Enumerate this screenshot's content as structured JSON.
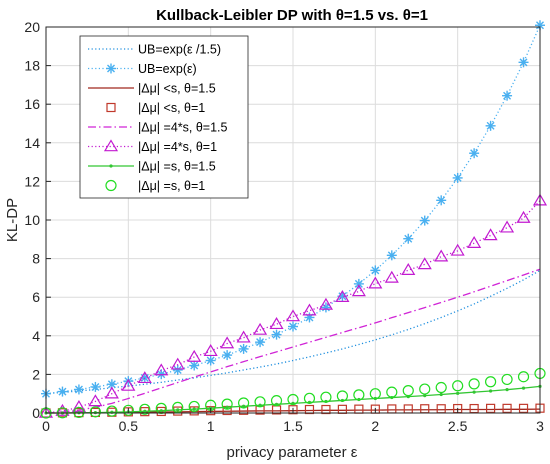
{
  "chart_data": {
    "type": "line",
    "title": "Kullback-Leibler DP with θ=1.5 vs. θ=1",
    "xlabel": "privacy parameter ε",
    "ylabel": "KL-DP",
    "xlim": [
      0,
      3
    ],
    "ylim": [
      0,
      20
    ],
    "xticks": [
      0,
      0.5,
      1,
      1.5,
      2,
      2.5,
      3
    ],
    "xtick_labels": [
      "0",
      "0.5",
      "1",
      "1.5",
      "2",
      "2.5",
      "3"
    ],
    "yticks": [
      0,
      2,
      4,
      6,
      8,
      10,
      12,
      14,
      16,
      18,
      20
    ],
    "ytick_labels": [
      "0",
      "2",
      "4",
      "6",
      "8",
      "10",
      "12",
      "14",
      "16",
      "18",
      "20"
    ],
    "grid": true,
    "legend_position": "top-left",
    "x": [
      0,
      0.1,
      0.2,
      0.3,
      0.4,
      0.5,
      0.6,
      0.7,
      0.8,
      0.9,
      1.0,
      1.1,
      1.2,
      1.3,
      1.4,
      1.5,
      1.6,
      1.7,
      1.8,
      1.9,
      2.0,
      2.1,
      2.2,
      2.3,
      2.4,
      2.5,
      2.6,
      2.7,
      2.8,
      2.9,
      3.0
    ],
    "series": [
      {
        "name": "UB=exp(ε /1.5)",
        "color": "#1f8fdf",
        "line": "dotted",
        "marker": "none",
        "values": [
          1.0,
          1.07,
          1.14,
          1.22,
          1.31,
          1.4,
          1.49,
          1.59,
          1.71,
          1.82,
          1.95,
          2.08,
          2.23,
          2.38,
          2.54,
          2.72,
          2.91,
          3.11,
          3.32,
          3.55,
          3.79,
          4.05,
          4.33,
          4.63,
          4.95,
          5.29,
          5.65,
          6.05,
          6.46,
          6.9,
          7.39
        ]
      },
      {
        "name": "UB=exp(ε)",
        "color": "#4ab0f0",
        "line": "dotted",
        "marker": "asterisk",
        "values": [
          1.0,
          1.11,
          1.22,
          1.35,
          1.49,
          1.65,
          1.82,
          2.01,
          2.23,
          2.46,
          2.72,
          3.0,
          3.32,
          3.67,
          4.06,
          4.48,
          4.95,
          5.47,
          6.05,
          6.69,
          7.39,
          8.17,
          9.03,
          9.97,
          11.02,
          12.18,
          13.46,
          14.88,
          16.44,
          18.17,
          20.09
        ]
      },
      {
        "name": "|Δμ| <s, θ=1.5",
        "color": "#a0281e",
        "line": "solid",
        "marker": "none",
        "values": [
          0.0,
          0.0,
          0.01,
          0.01,
          0.02,
          0.03,
          0.04,
          0.05,
          0.06,
          0.07,
          0.08,
          0.09,
          0.1,
          0.11,
          0.11,
          0.12,
          0.13,
          0.14,
          0.14,
          0.15,
          0.15,
          0.16,
          0.16,
          0.17,
          0.17,
          0.18,
          0.18,
          0.18,
          0.19,
          0.19,
          0.2
        ]
      },
      {
        "name": "|Δμ| <s, θ=1",
        "color": "#c0392b",
        "line": "none",
        "marker": "square",
        "values": [
          0.0,
          0.01,
          0.02,
          0.03,
          0.04,
          0.06,
          0.07,
          0.08,
          0.1,
          0.11,
          0.12,
          0.13,
          0.14,
          0.15,
          0.16,
          0.17,
          0.18,
          0.18,
          0.19,
          0.2,
          0.2,
          0.21,
          0.21,
          0.22,
          0.22,
          0.23,
          0.23,
          0.24,
          0.24,
          0.24,
          0.25
        ]
      },
      {
        "name": "|Δμ| =4*s, θ=1.5",
        "color": "#d024d6",
        "line": "dashdot",
        "marker": "none",
        "values": [
          0.0,
          0.05,
          0.15,
          0.3,
          0.5,
          0.75,
          1.02,
          1.3,
          1.58,
          1.86,
          2.13,
          2.4,
          2.66,
          2.92,
          3.17,
          3.42,
          3.67,
          3.92,
          4.17,
          4.42,
          4.67,
          4.94,
          5.2,
          5.46,
          5.73,
          6.0,
          6.28,
          6.57,
          6.86,
          7.15,
          7.45
        ]
      },
      {
        "name": "|Δμ| =4*s, θ=1",
        "color": "#c21ad0",
        "line": "dotted",
        "marker": "triangle",
        "values": [
          0.0,
          0.1,
          0.3,
          0.6,
          1.0,
          1.4,
          1.8,
          2.2,
          2.5,
          2.9,
          3.2,
          3.6,
          3.9,
          4.3,
          4.6,
          5.0,
          5.3,
          5.6,
          6.0,
          6.3,
          6.7,
          7.0,
          7.4,
          7.7,
          8.1,
          8.4,
          8.8,
          9.2,
          9.6,
          10.1,
          11.0
        ]
      },
      {
        "name": "|Δμ| =s, θ=1.5",
        "color": "#33c633",
        "line": "solid",
        "marker": "dot",
        "values": [
          0.0,
          0.0,
          0.01,
          0.02,
          0.04,
          0.06,
          0.09,
          0.12,
          0.16,
          0.2,
          0.25,
          0.3,
          0.35,
          0.4,
          0.45,
          0.5,
          0.55,
          0.6,
          0.65,
          0.7,
          0.75,
          0.8,
          0.85,
          0.9,
          0.96,
          1.02,
          1.08,
          1.14,
          1.21,
          1.29,
          1.38
        ]
      },
      {
        "name": "|Δμ| =s, θ=1",
        "color": "#22dd22",
        "line": "none",
        "marker": "circle",
        "values": [
          0.0,
          0.01,
          0.03,
          0.06,
          0.1,
          0.14,
          0.19,
          0.24,
          0.29,
          0.34,
          0.4,
          0.46,
          0.52,
          0.58,
          0.64,
          0.7,
          0.76,
          0.82,
          0.88,
          0.94,
          1.0,
          1.08,
          1.16,
          1.24,
          1.32,
          1.41,
          1.51,
          1.62,
          1.74,
          1.88,
          2.05
        ]
      }
    ]
  }
}
